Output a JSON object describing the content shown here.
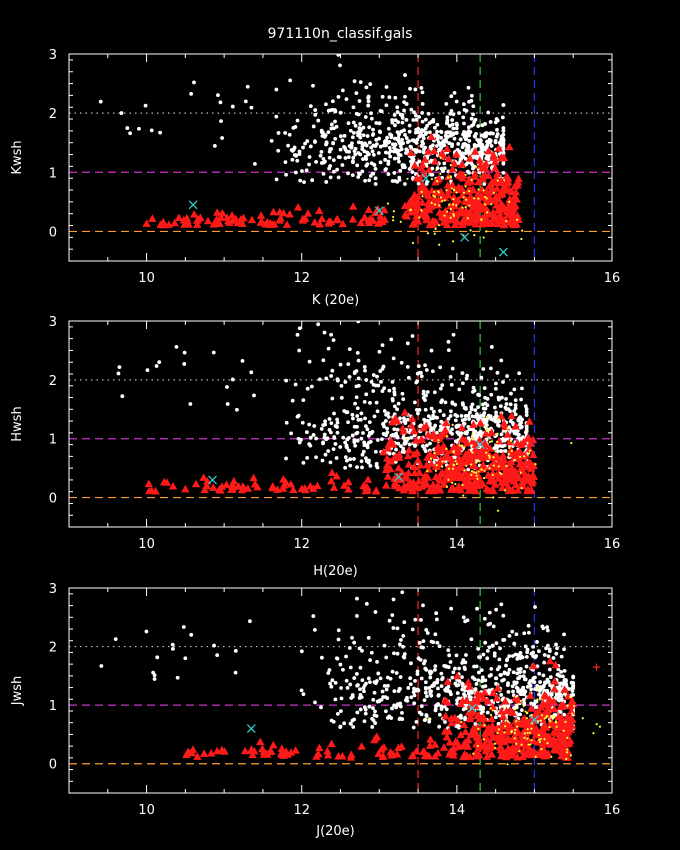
{
  "figure": {
    "title": "971110n_classif.gals"
  },
  "colors": {
    "background": "#000000",
    "frame": "#ffffff",
    "galaxies": "#ffffff",
    "triangles": "#ff1a1a",
    "yellow_points": "#ffff33",
    "cross_markers": "#33cccc",
    "plus_marker": "#ff2222",
    "dotted_line": "#bbbbbb",
    "magenta_dashed": "#cc33cc",
    "orange_dashed": "#ff9933",
    "red_vline": "#ff2222",
    "green_vline": "#33cc33",
    "blue_vline": "#2233ff"
  },
  "chart_data": [
    {
      "type": "scatter",
      "xlabel": "K (20e)",
      "ylabel": "Kwsh",
      "xlim": [
        9,
        16
      ],
      "ylim": [
        -0.5,
        3
      ],
      "x_ticks": [
        10,
        12,
        14,
        16
      ],
      "y_ticks": [
        0,
        1,
        2,
        3
      ],
      "hlines": [
        {
          "y": 2,
          "style": "dotted",
          "color": "#bbbbbb"
        },
        {
          "y": 1,
          "style": "dashed",
          "color": "#cc33cc"
        },
        {
          "y": 0,
          "style": "dashed",
          "color": "#ff9933"
        }
      ],
      "vlines": [
        {
          "x": 13.5,
          "style": "dashed",
          "color": "#ff2222"
        },
        {
          "x": 14.3,
          "style": "dashed",
          "color": "#33cc33"
        },
        {
          "x": 15.0,
          "style": "dashed",
          "color": "#2233ff"
        }
      ],
      "crosses": [
        [
          10.6,
          0.45
        ],
        [
          13.0,
          0.35
        ],
        [
          14.1,
          -0.1
        ],
        [
          14.6,
          -0.35
        ],
        [
          13.6,
          0.9
        ]
      ],
      "plus": []
    },
    {
      "type": "scatter",
      "xlabel": "H(20e)",
      "ylabel": "Hwsh",
      "xlim": [
        9,
        16
      ],
      "ylim": [
        -0.5,
        3
      ],
      "x_ticks": [
        10,
        12,
        14,
        16
      ],
      "y_ticks": [
        0,
        1,
        2,
        3
      ],
      "hlines": [
        {
          "y": 2,
          "style": "dotted",
          "color": "#bbbbbb"
        },
        {
          "y": 1,
          "style": "dashed",
          "color": "#cc33cc"
        },
        {
          "y": 0,
          "style": "dashed",
          "color": "#ff9933"
        }
      ],
      "vlines": [
        {
          "x": 13.5,
          "style": "dashed",
          "color": "#ff2222"
        },
        {
          "x": 14.3,
          "style": "dashed",
          "color": "#33cc33"
        },
        {
          "x": 15.0,
          "style": "dashed",
          "color": "#2233ff"
        }
      ],
      "crosses": [
        [
          10.85,
          0.3
        ],
        [
          13.25,
          0.35
        ],
        [
          14.3,
          0.9
        ]
      ],
      "plus": []
    },
    {
      "type": "scatter",
      "xlabel": "J(20e)",
      "ylabel": "Jwsh",
      "xlim": [
        9,
        16
      ],
      "ylim": [
        -0.5,
        3
      ],
      "x_ticks": [
        10,
        12,
        14,
        16
      ],
      "y_ticks": [
        0,
        1,
        2,
        3
      ],
      "hlines": [
        {
          "y": 2,
          "style": "dotted",
          "color": "#bbbbbb"
        },
        {
          "y": 1,
          "style": "dashed",
          "color": "#cc33cc"
        },
        {
          "y": 0,
          "style": "dashed",
          "color": "#ff9933"
        }
      ],
      "vlines": [
        {
          "x": 13.5,
          "style": "dashed",
          "color": "#ff2222"
        },
        {
          "x": 14.3,
          "style": "dashed",
          "color": "#33cc33"
        },
        {
          "x": 15.0,
          "style": "dashed",
          "color": "#2233ff"
        }
      ],
      "crosses": [
        [
          11.35,
          0.6
        ],
        [
          14.2,
          0.95
        ],
        [
          15.0,
          0.75
        ]
      ],
      "plus": [
        [
          15.8,
          1.65
        ]
      ]
    }
  ]
}
